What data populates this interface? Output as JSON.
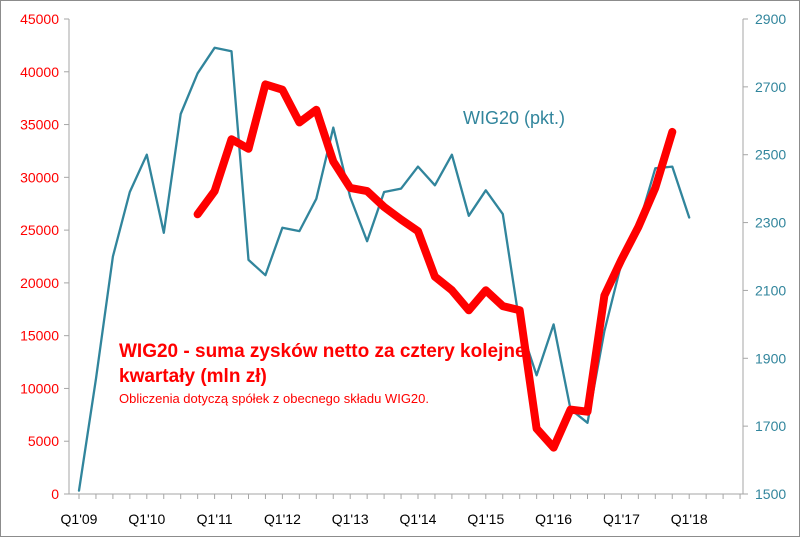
{
  "chart_data": {
    "type": "line",
    "x_ticks": [
      "Q1'09",
      "Q1'10",
      "Q1'11",
      "Q1'12",
      "Q1'13",
      "Q1'14",
      "Q1'15",
      "Q1'16",
      "Q1'17",
      "Q1'18"
    ],
    "y_left": {
      "min": 0,
      "max": 45000,
      "ticks": [
        "0",
        "5000",
        "10000",
        "15000",
        "20000",
        "25000",
        "30000",
        "35000",
        "40000",
        "45000"
      ],
      "color": "#ff0000"
    },
    "y_right": {
      "min": 1500,
      "max": 2900,
      "ticks": [
        "1500",
        "1700",
        "1900",
        "2100",
        "2300",
        "2500",
        "2700",
        "2900"
      ],
      "color": "#31859c"
    },
    "grid": false,
    "series": [
      {
        "name": "WIG20 (pkt.)",
        "axis": "right",
        "color": "#31859c",
        "points": [
          {
            "q": 0,
            "v": 1510
          },
          {
            "q": 1,
            "v": 1840
          },
          {
            "q": 2,
            "v": 2200
          },
          {
            "q": 3,
            "v": 2390
          },
          {
            "q": 4,
            "v": 2500
          },
          {
            "q": 5,
            "v": 2270
          },
          {
            "q": 6,
            "v": 2620
          },
          {
            "q": 7,
            "v": 2740
          },
          {
            "q": 8,
            "v": 2815
          },
          {
            "q": 9,
            "v": 2805
          },
          {
            "q": 10,
            "v": 2190
          },
          {
            "q": 11,
            "v": 2145
          },
          {
            "q": 12,
            "v": 2285
          },
          {
            "q": 13,
            "v": 2275
          },
          {
            "q": 14,
            "v": 2370
          },
          {
            "q": 15,
            "v": 2580
          },
          {
            "q": 16,
            "v": 2375
          },
          {
            "q": 17,
            "v": 2245
          },
          {
            "q": 18,
            "v": 2390
          },
          {
            "q": 19,
            "v": 2400
          },
          {
            "q": 20,
            "v": 2465
          },
          {
            "q": 21,
            "v": 2410
          },
          {
            "q": 22,
            "v": 2500
          },
          {
            "q": 23,
            "v": 2320
          },
          {
            "q": 24,
            "v": 2395
          },
          {
            "q": 25,
            "v": 2325
          },
          {
            "q": 26,
            "v": 2000
          },
          {
            "q": 27,
            "v": 1850
          },
          {
            "q": 28,
            "v": 2000
          },
          {
            "q": 29,
            "v": 1750
          },
          {
            "q": 30,
            "v": 1710
          },
          {
            "q": 31,
            "v": 1980
          },
          {
            "q": 32,
            "v": 2180
          },
          {
            "q": 33,
            "v": 2290
          },
          {
            "q": 34,
            "v": 2460
          },
          {
            "q": 35,
            "v": 2465
          },
          {
            "q": 36,
            "v": 2315
          }
        ]
      },
      {
        "name": "",
        "axis": "left",
        "color": "#ff0000",
        "points": [
          {
            "q": 7,
            "v": 26500
          },
          {
            "q": 8,
            "v": 28700
          },
          {
            "q": 9,
            "v": 33600
          },
          {
            "q": 10,
            "v": 32700
          },
          {
            "q": 11,
            "v": 38800
          },
          {
            "q": 12,
            "v": 38300
          },
          {
            "q": 13,
            "v": 35200
          },
          {
            "q": 14,
            "v": 36400
          },
          {
            "q": 15,
            "v": 31500
          },
          {
            "q": 16,
            "v": 29000
          },
          {
            "q": 17,
            "v": 28700
          },
          {
            "q": 18,
            "v": 27200
          },
          {
            "q": 19,
            "v": 26000
          },
          {
            "q": 20,
            "v": 24900
          },
          {
            "q": 21,
            "v": 20600
          },
          {
            "q": 22,
            "v": 19300
          },
          {
            "q": 23,
            "v": 17400
          },
          {
            "q": 24,
            "v": 19300
          },
          {
            "q": 25,
            "v": 17800
          },
          {
            "q": 26,
            "v": 17400
          },
          {
            "q": 27,
            "v": 6200
          },
          {
            "q": 28,
            "v": 4400
          },
          {
            "q": 29,
            "v": 8000
          },
          {
            "q": 30,
            "v": 7800
          },
          {
            "q": 31,
            "v": 18800
          },
          {
            "q": 32,
            "v": 22200
          },
          {
            "q": 33,
            "v": 25300
          },
          {
            "q": 34,
            "v": 29000
          },
          {
            "q": 35,
            "v": 34300
          }
        ]
      }
    ],
    "series_label": "WIG20 (pkt.)",
    "annotation": {
      "line1": "WIG20 - suma zysków netto za cztery kolejne",
      "line2": "kwartały (mln zł)",
      "line3": "Obliczenia dotyczą spółek z obecnego składu WIG20."
    }
  }
}
